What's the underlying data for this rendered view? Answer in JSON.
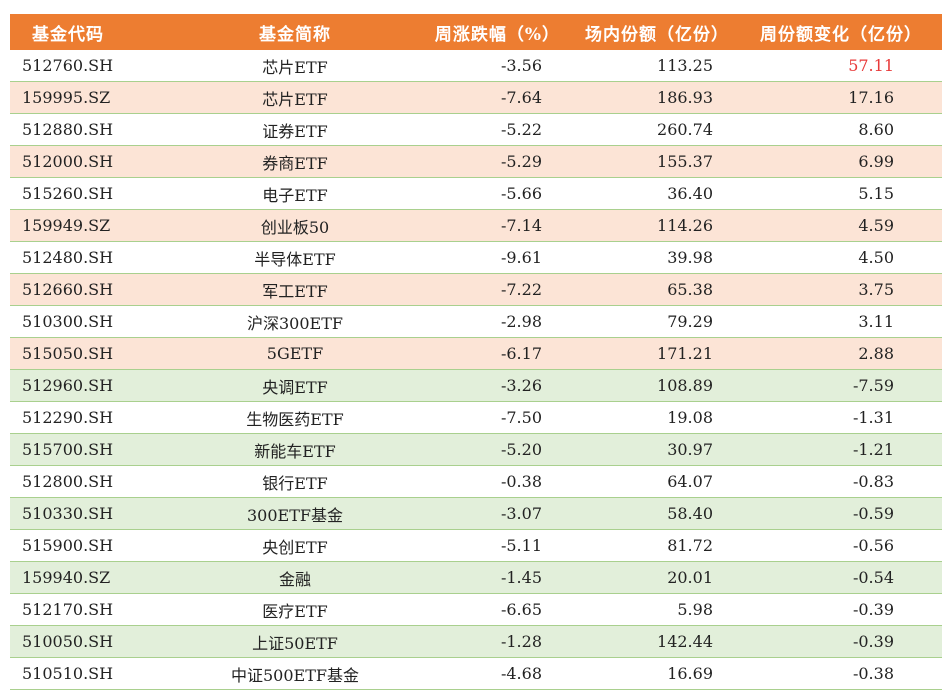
{
  "colors": {
    "header_bg": "#ed7d31",
    "header_text": "#ffffff",
    "band_orange": "#fce4d6",
    "band_green": "#e2efda",
    "border": "#a9d08e",
    "highlight_red": "#e83a3a"
  },
  "table": {
    "headers": [
      "基金代码",
      "基金简称",
      "周涨跌幅（%）",
      "场内份额（亿份）",
      "周份额变化（亿份）"
    ],
    "rows": [
      {
        "code": "512760.SH",
        "name": "芯片ETF",
        "weekly_change": "-3.56",
        "shares": "113.25",
        "share_change": "57.11",
        "band": "white",
        "highlight": true
      },
      {
        "code": "159995.SZ",
        "name": "芯片ETF",
        "weekly_change": "-7.64",
        "shares": "186.93",
        "share_change": "17.16",
        "band": "orange"
      },
      {
        "code": "512880.SH",
        "name": "证券ETF",
        "weekly_change": "-5.22",
        "shares": "260.74",
        "share_change": "8.60",
        "band": "white"
      },
      {
        "code": "512000.SH",
        "name": "券商ETF",
        "weekly_change": "-5.29",
        "shares": "155.37",
        "share_change": "6.99",
        "band": "orange"
      },
      {
        "code": "515260.SH",
        "name": "电子ETF",
        "weekly_change": "-5.66",
        "shares": "36.40",
        "share_change": "5.15",
        "band": "white"
      },
      {
        "code": "159949.SZ",
        "name": "创业板50",
        "weekly_change": "-7.14",
        "shares": "114.26",
        "share_change": "4.59",
        "band": "orange"
      },
      {
        "code": "512480.SH",
        "name": "半导体ETF",
        "weekly_change": "-9.61",
        "shares": "39.98",
        "share_change": "4.50",
        "band": "white"
      },
      {
        "code": "512660.SH",
        "name": "军工ETF",
        "weekly_change": "-7.22",
        "shares": "65.38",
        "share_change": "3.75",
        "band": "orange"
      },
      {
        "code": "510300.SH",
        "name": "沪深300ETF",
        "weekly_change": "-2.98",
        "shares": "79.29",
        "share_change": "3.11",
        "band": "white"
      },
      {
        "code": "515050.SH",
        "name": "5GETF",
        "weekly_change": "-6.17",
        "shares": "171.21",
        "share_change": "2.88",
        "band": "orange"
      },
      {
        "code": "512960.SH",
        "name": "央调ETF",
        "weekly_change": "-3.26",
        "shares": "108.89",
        "share_change": "-7.59",
        "band": "green"
      },
      {
        "code": "512290.SH",
        "name": "生物医药ETF",
        "weekly_change": "-7.50",
        "shares": "19.08",
        "share_change": "-1.31",
        "band": "white"
      },
      {
        "code": "515700.SH",
        "name": "新能车ETF",
        "weekly_change": "-5.20",
        "shares": "30.97",
        "share_change": "-1.21",
        "band": "green"
      },
      {
        "code": "512800.SH",
        "name": "银行ETF",
        "weekly_change": "-0.38",
        "shares": "64.07",
        "share_change": "-0.83",
        "band": "white"
      },
      {
        "code": "510330.SH",
        "name": "300ETF基金",
        "weekly_change": "-3.07",
        "shares": "58.40",
        "share_change": "-0.59",
        "band": "green"
      },
      {
        "code": "515900.SH",
        "name": "央创ETF",
        "weekly_change": "-5.11",
        "shares": "81.72",
        "share_change": "-0.56",
        "band": "white"
      },
      {
        "code": "159940.SZ",
        "name": "金融",
        "weekly_change": "-1.45",
        "shares": "20.01",
        "share_change": "-0.54",
        "band": "green"
      },
      {
        "code": "512170.SH",
        "name": "医疗ETF",
        "weekly_change": "-6.65",
        "shares": "5.98",
        "share_change": "-0.39",
        "band": "white"
      },
      {
        "code": "510050.SH",
        "name": "上证50ETF",
        "weekly_change": "-1.28",
        "shares": "142.44",
        "share_change": "-0.39",
        "band": "green"
      },
      {
        "code": "510510.SH",
        "name": "中证500ETF基金",
        "weekly_change": "-4.68",
        "shares": "16.69",
        "share_change": "-0.38",
        "band": "white"
      }
    ]
  }
}
